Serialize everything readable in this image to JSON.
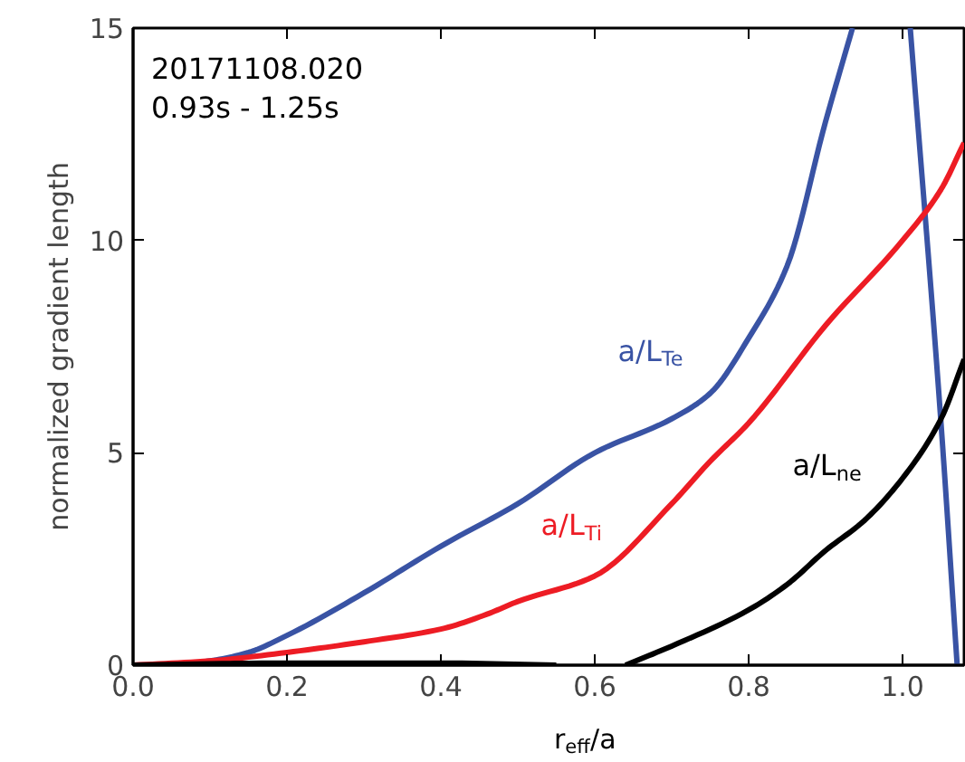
{
  "chart_data": {
    "type": "line",
    "xlabel": "r$_{eff}$/a",
    "ylabel": "normalized gradient length",
    "annotations": [
      "20171108.020",
      "0.93s - 1.25s"
    ],
    "xlim": [
      0,
      1.08
    ],
    "ylim": [
      0,
      15
    ],
    "xticks": [
      {
        "value": 0,
        "label": "0.0"
      },
      {
        "value": 0.2,
        "label": "0.2"
      },
      {
        "value": 0.4,
        "label": "0.4"
      },
      {
        "value": 0.6,
        "label": "0.6"
      },
      {
        "value": 0.8,
        "label": "0.8"
      },
      {
        "value": 1.0,
        "label": "1.0"
      }
    ],
    "yticks": [
      0,
      5,
      10,
      15
    ],
    "grid": false,
    "legend": false,
    "line_style": "solid",
    "series": [
      {
        "name": "a/L$_{Te}$",
        "color": "#3953a4",
        "x": [
          0,
          0.05,
          0.1,
          0.15,
          0.2,
          0.3,
          0.4,
          0.5,
          0.6,
          0.7,
          0.75,
          0.8,
          0.85,
          0.9,
          0.935,
          0.97,
          1.01,
          1.05,
          1.071
        ],
        "values": [
          0,
          0,
          0.1,
          0.3,
          0.7,
          1.7,
          2.8,
          3.8,
          5.0,
          5.8,
          6.4,
          7.7,
          9.4,
          12.8,
          15,
          null,
          15,
          5.7,
          0
        ]
      },
      {
        "name": "a/L$_{Ti}$",
        "color": "#ed1c24",
        "x": [
          0,
          0.1,
          0.2,
          0.3,
          0.4,
          0.46,
          0.5,
          0.6,
          0.7,
          0.75,
          0.8,
          0.9,
          1.0,
          1.05,
          1.08
        ],
        "values": [
          0,
          0.1,
          0.3,
          0.55,
          0.85,
          1.2,
          1.5,
          2.1,
          3.8,
          4.8,
          5.7,
          8.0,
          10.0,
          11.2,
          12.3
        ]
      },
      {
        "name": "a/L$_{ne}$",
        "color": "#000000",
        "x": [
          0,
          0.2,
          0.4,
          0.55,
          0.6,
          0.64,
          0.7,
          0.8,
          0.85,
          0.9,
          0.95,
          1.0,
          1.05,
          1.08
        ],
        "values": [
          0,
          0.05,
          0.05,
          0.0,
          null,
          0,
          0.45,
          1.3,
          1.9,
          2.7,
          3.4,
          4.4,
          5.8,
          7.2
        ]
      }
    ]
  }
}
